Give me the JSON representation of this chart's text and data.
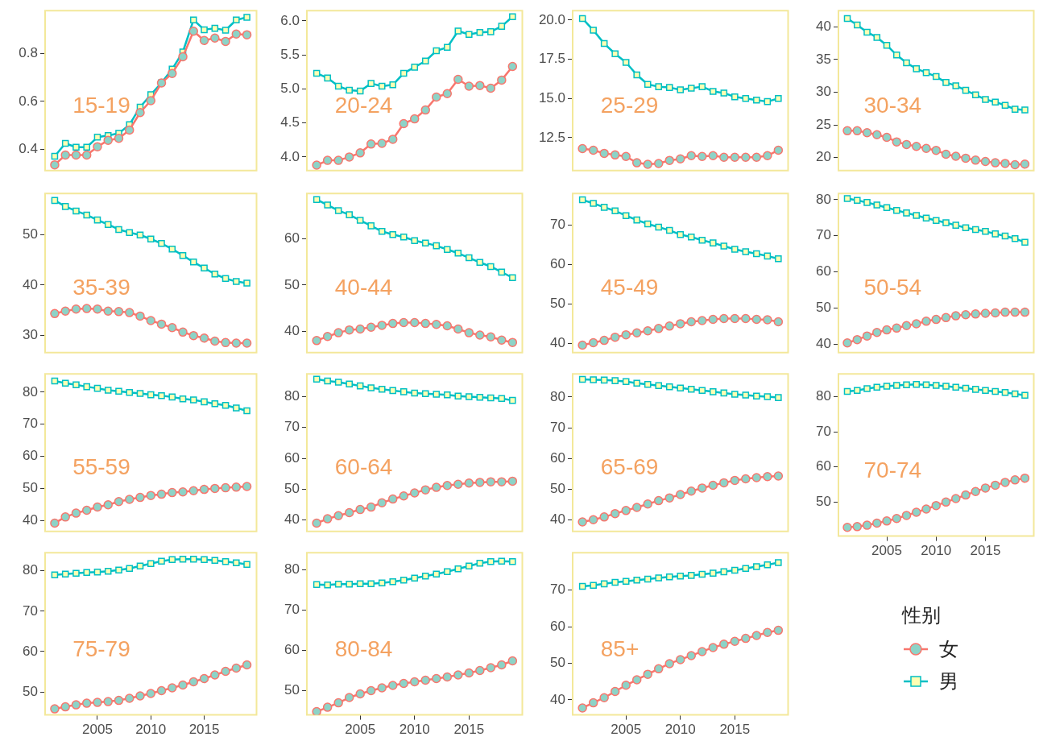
{
  "chart_data": [
    {
      "type": "line",
      "title": "15-19",
      "x": [
        2001,
        2002,
        2003,
        2004,
        2005,
        2006,
        2007,
        2008,
        2009,
        2010,
        2011,
        2012,
        2013,
        2014,
        2015,
        2016,
        2017,
        2018,
        2019
      ],
      "xlim": [
        2000.1,
        2019.9
      ],
      "xticks": [
        2005,
        2010,
        2015
      ],
      "ylim": [
        0.31,
        0.98
      ],
      "yticks": [
        {
          "value": 0.4,
          "label": "0.4"
        },
        {
          "value": 0.6,
          "label": "0.6"
        },
        {
          "value": 0.8,
          "label": "0.8"
        }
      ],
      "tick_labels": "y",
      "series": [
        {
          "color": "#f8766d",
          "marker": "circle",
          "values": [
            0.334,
            0.375,
            0.375,
            0.375,
            0.41,
            0.437,
            0.445,
            0.48,
            0.553,
            0.603,
            0.677,
            0.717,
            0.787,
            0.894,
            0.855,
            0.865,
            0.851,
            0.882,
            0.879
          ]
        },
        {
          "color": "#00bfc4",
          "marker": "square",
          "values": [
            0.37,
            0.424,
            0.408,
            0.408,
            0.45,
            0.457,
            0.466,
            0.502,
            0.576,
            0.628,
            0.678,
            0.735,
            0.807,
            0.941,
            0.9,
            0.906,
            0.898,
            0.941,
            0.952
          ]
        }
      ]
    },
    {
      "type": "line",
      "title": "20-24",
      "x": [
        2001,
        2002,
        2003,
        2004,
        2005,
        2006,
        2007,
        2008,
        2009,
        2010,
        2011,
        2012,
        2013,
        2014,
        2015,
        2016,
        2017,
        2018,
        2019
      ],
      "xlim": [
        2000.1,
        2019.9
      ],
      "xticks": [
        2005,
        2010,
        2015
      ],
      "ylim": [
        3.8,
        6.15
      ],
      "yticks": [
        {
          "value": 4,
          "label": "4.0"
        },
        {
          "value": 4.5,
          "label": "4.5"
        },
        {
          "value": 5,
          "label": "5.0"
        },
        {
          "value": 5.5,
          "label": "5.5"
        },
        {
          "value": 6,
          "label": "6.0"
        }
      ],
      "tick_labels": "y",
      "series": [
        {
          "color": "#f8766d",
          "marker": "circle",
          "values": [
            3.88,
            3.95,
            3.95,
            4.0,
            4.06,
            4.19,
            4.2,
            4.26,
            4.49,
            4.56,
            4.69,
            4.88,
            4.93,
            5.14,
            5.04,
            5.05,
            5.01,
            5.13,
            5.33
          ]
        },
        {
          "color": "#00bfc4",
          "marker": "square",
          "values": [
            5.23,
            5.16,
            5.04,
            4.98,
            4.97,
            5.08,
            5.04,
            5.06,
            5.23,
            5.32,
            5.41,
            5.56,
            5.61,
            5.85,
            5.8,
            5.83,
            5.84,
            5.92,
            6.06
          ]
        }
      ]
    },
    {
      "type": "line",
      "title": "25-29",
      "x": [
        2001,
        2002,
        2003,
        2004,
        2005,
        2006,
        2007,
        2008,
        2009,
        2010,
        2011,
        2012,
        2013,
        2014,
        2015,
        2016,
        2017,
        2018,
        2019
      ],
      "xlim": [
        2000.1,
        2019.9
      ],
      "xticks": [
        2005,
        2010,
        2015
      ],
      "ylim": [
        10.4,
        20.6
      ],
      "yticks": [
        {
          "value": 12.5,
          "label": "12.5"
        },
        {
          "value": 15,
          "label": "15.0"
        },
        {
          "value": 17.5,
          "label": "17.5"
        },
        {
          "value": 20,
          "label": "20.0"
        }
      ],
      "tick_labels": "y",
      "series": [
        {
          "color": "#f8766d",
          "marker": "circle",
          "values": [
            11.8,
            11.7,
            11.5,
            11.4,
            11.3,
            10.9,
            10.8,
            10.85,
            11.05,
            11.15,
            11.35,
            11.3,
            11.35,
            11.25,
            11.25,
            11.25,
            11.25,
            11.35,
            11.7
          ]
        },
        {
          "color": "#00bfc4",
          "marker": "square",
          "values": [
            20.1,
            19.35,
            18.5,
            17.85,
            17.3,
            16.5,
            15.9,
            15.75,
            15.7,
            15.55,
            15.65,
            15.75,
            15.45,
            15.35,
            15.1,
            15.0,
            14.9,
            14.8,
            15.0
          ]
        }
      ]
    },
    {
      "type": "line",
      "title": "30-34",
      "x": [
        2001,
        2002,
        2003,
        2004,
        2005,
        2006,
        2007,
        2008,
        2009,
        2010,
        2011,
        2012,
        2013,
        2014,
        2015,
        2016,
        2017,
        2018,
        2019
      ],
      "xlim": [
        2000.1,
        2019.9
      ],
      "xticks": [
        2005,
        2010,
        2015
      ],
      "ylim": [
        18,
        42.5
      ],
      "yticks": [
        20,
        25,
        30,
        35,
        40
      ],
      "tick_labels": "y",
      "series": [
        {
          "color": "#f8766d",
          "marker": "circle",
          "values": [
            24.1,
            24.1,
            23.8,
            23.5,
            23.1,
            22.4,
            22.0,
            21.7,
            21.4,
            21.1,
            20.5,
            20.2,
            19.9,
            19.6,
            19.4,
            19.2,
            19.1,
            18.9,
            19.0
          ]
        },
        {
          "color": "#00bfc4",
          "marker": "square",
          "values": [
            41.3,
            40.3,
            39.2,
            38.4,
            37.2,
            35.7,
            34.5,
            33.6,
            33.0,
            32.4,
            31.5,
            31.0,
            30.3,
            29.6,
            28.9,
            28.5,
            28.0,
            27.4,
            27.3
          ]
        }
      ]
    },
    {
      "type": "line",
      "title": "35-39",
      "x": [
        2001,
        2002,
        2003,
        2004,
        2005,
        2006,
        2007,
        2008,
        2009,
        2010,
        2011,
        2012,
        2013,
        2014,
        2015,
        2016,
        2017,
        2018,
        2019
      ],
      "xlim": [
        2000.1,
        2019.9
      ],
      "xticks": [
        2005,
        2010,
        2015
      ],
      "ylim": [
        26.5,
        58.3
      ],
      "yticks": [
        30,
        40,
        50
      ],
      "tick_labels": "y",
      "series": [
        {
          "color": "#f8766d",
          "marker": "circle",
          "values": [
            34.3,
            34.8,
            35.2,
            35.3,
            35.2,
            34.8,
            34.7,
            34.5,
            33.8,
            32.9,
            32.2,
            31.5,
            30.6,
            29.9,
            29.4,
            28.8,
            28.5,
            28.4,
            28.4
          ]
        },
        {
          "color": "#00bfc4",
          "marker": "square",
          "values": [
            56.9,
            55.7,
            54.8,
            54.0,
            53.0,
            52.1,
            51.1,
            50.5,
            50.0,
            49.2,
            48.3,
            47.2,
            45.9,
            44.6,
            43.4,
            42.2,
            41.3,
            40.7,
            40.4
          ]
        }
      ]
    },
    {
      "type": "line",
      "title": "40-44",
      "x": [
        2001,
        2002,
        2003,
        2004,
        2005,
        2006,
        2007,
        2008,
        2009,
        2010,
        2011,
        2012,
        2013,
        2014,
        2015,
        2016,
        2017,
        2018,
        2019
      ],
      "xlim": [
        2000.1,
        2019.9
      ],
      "xticks": [
        2005,
        2010,
        2015
      ],
      "ylim": [
        35.4,
        69.8
      ],
      "yticks": [
        40,
        50,
        60
      ],
      "tick_labels": "y",
      "series": [
        {
          "color": "#f8766d",
          "marker": "circle",
          "values": [
            38.0,
            38.9,
            39.7,
            40.3,
            40.5,
            40.9,
            41.3,
            41.7,
            41.9,
            41.9,
            41.7,
            41.5,
            41.2,
            40.5,
            39.7,
            39.2,
            38.8,
            38.1,
            37.6
          ]
        },
        {
          "color": "#00bfc4",
          "marker": "square",
          "values": [
            68.5,
            67.3,
            66.1,
            65.2,
            64.0,
            62.8,
            61.6,
            60.9,
            60.4,
            59.6,
            59.1,
            58.5,
            57.7,
            56.9,
            55.9,
            54.9,
            54.0,
            52.8,
            51.6
          ]
        }
      ]
    },
    {
      "type": "line",
      "title": "45-49",
      "x": [
        2001,
        2002,
        2003,
        2004,
        2005,
        2006,
        2007,
        2008,
        2009,
        2010,
        2011,
        2012,
        2013,
        2014,
        2015,
        2016,
        2017,
        2018,
        2019
      ],
      "xlim": [
        2000.1,
        2019.9
      ],
      "xticks": [
        2005,
        2010,
        2015
      ],
      "ylim": [
        37.7,
        77.9
      ],
      "yticks": [
        40,
        50,
        60,
        70
      ],
      "tick_labels": "y",
      "series": [
        {
          "color": "#f8766d",
          "marker": "circle",
          "values": [
            39.6,
            40.2,
            40.8,
            41.6,
            42.2,
            42.7,
            43.2,
            43.8,
            44.4,
            45.0,
            45.5,
            45.8,
            46.1,
            46.3,
            46.3,
            46.3,
            46.1,
            46.0,
            45.5
          ]
        },
        {
          "color": "#00bfc4",
          "marker": "square",
          "values": [
            76.3,
            75.4,
            74.4,
            73.5,
            72.3,
            71.2,
            70.2,
            69.4,
            68.6,
            67.5,
            66.9,
            66.1,
            65.4,
            64.6,
            63.8,
            63.2,
            62.7,
            62.1,
            61.4
          ]
        }
      ]
    },
    {
      "type": "line",
      "title": "50-54",
      "x": [
        2001,
        2002,
        2003,
        2004,
        2005,
        2006,
        2007,
        2008,
        2009,
        2010,
        2011,
        2012,
        2013,
        2014,
        2015,
        2016,
        2017,
        2018,
        2019
      ],
      "xlim": [
        2000.1,
        2019.9
      ],
      "xticks": [
        2005,
        2010,
        2015
      ],
      "ylim": [
        37.6,
        81.7
      ],
      "yticks": [
        40,
        50,
        60,
        70,
        80
      ],
      "tick_labels": "y",
      "series": [
        {
          "color": "#f8766d",
          "marker": "circle",
          "values": [
            40.3,
            41.2,
            42.2,
            43.2,
            43.9,
            44.4,
            45.1,
            45.6,
            46.3,
            46.8,
            47.3,
            47.8,
            48.1,
            48.3,
            48.5,
            48.6,
            48.8,
            48.8,
            48.8
          ]
        },
        {
          "color": "#00bfc4",
          "marker": "square",
          "values": [
            80.3,
            79.8,
            79.2,
            78.5,
            77.8,
            77.0,
            76.3,
            75.6,
            74.9,
            74.2,
            73.6,
            72.9,
            72.2,
            71.7,
            71.2,
            70.5,
            69.9,
            69.2,
            68.2
          ]
        }
      ]
    },
    {
      "type": "line",
      "title": "55-59",
      "x": [
        2001,
        2002,
        2003,
        2004,
        2005,
        2006,
        2007,
        2008,
        2009,
        2010,
        2011,
        2012,
        2013,
        2014,
        2015,
        2016,
        2017,
        2018,
        2019
      ],
      "xlim": [
        2000.1,
        2019.9
      ],
      "xticks": [
        2005,
        2010,
        2015
      ],
      "ylim": [
        36.6,
        85.7
      ],
      "yticks": [
        40,
        50,
        60,
        70,
        80
      ],
      "tick_labels": "y",
      "series": [
        {
          "color": "#f8766d",
          "marker": "circle",
          "values": [
            39.2,
            41.1,
            42.3,
            43.2,
            44.2,
            44.9,
            45.9,
            46.6,
            47.2,
            47.8,
            48.2,
            48.7,
            48.9,
            49.3,
            49.7,
            50.0,
            50.2,
            50.4,
            50.6
          ]
        },
        {
          "color": "#00bfc4",
          "marker": "square",
          "values": [
            83.5,
            82.8,
            82.3,
            81.7,
            81.2,
            80.6,
            80.3,
            79.9,
            79.6,
            79.2,
            78.9,
            78.5,
            77.9,
            77.6,
            77.0,
            76.4,
            75.9,
            75.1,
            74.2
          ]
        }
      ]
    },
    {
      "type": "line",
      "title": "60-64",
      "x": [
        2001,
        2002,
        2003,
        2004,
        2005,
        2006,
        2007,
        2008,
        2009,
        2010,
        2011,
        2012,
        2013,
        2014,
        2015,
        2016,
        2017,
        2018,
        2019
      ],
      "xlim": [
        2000.1,
        2019.9
      ],
      "xticks": [
        2005,
        2010,
        2015
      ],
      "ylim": [
        36.3,
        87.4
      ],
      "yticks": [
        40,
        50,
        60,
        70,
        80
      ],
      "tick_labels": "y",
      "series": [
        {
          "color": "#f8766d",
          "marker": "circle",
          "values": [
            39.0,
            40.4,
            41.4,
            42.4,
            43.4,
            44.2,
            45.6,
            46.8,
            47.8,
            48.8,
            49.8,
            50.6,
            51.2,
            51.6,
            52.0,
            52.2,
            52.4,
            52.4,
            52.6
          ]
        },
        {
          "color": "#00bfc4",
          "marker": "square",
          "values": [
            85.7,
            85.1,
            84.7,
            84.1,
            83.5,
            82.9,
            82.4,
            82.0,
            81.6,
            81.2,
            81.0,
            80.8,
            80.6,
            80.2,
            80.0,
            79.8,
            79.6,
            79.4,
            78.8
          ]
        }
      ]
    },
    {
      "type": "line",
      "title": "65-69",
      "x": [
        2001,
        2002,
        2003,
        2004,
        2005,
        2006,
        2007,
        2008,
        2009,
        2010,
        2011,
        2012,
        2013,
        2014,
        2015,
        2016,
        2017,
        2018,
        2019
      ],
      "xlim": [
        2000.1,
        2019.9
      ],
      "xticks": [
        2005,
        2010,
        2015
      ],
      "ylim": [
        36.3,
        87.5
      ],
      "yticks": [
        40,
        50,
        60,
        70,
        80
      ],
      "tick_labels": "y",
      "series": [
        {
          "color": "#f8766d",
          "marker": "circle",
          "values": [
            39.4,
            40.1,
            41.0,
            42.1,
            43.1,
            44.1,
            45.2,
            46.3,
            47.2,
            48.3,
            49.4,
            50.4,
            51.3,
            52.1,
            52.9,
            53.4,
            53.8,
            54.1,
            54.3
          ]
        },
        {
          "color": "#00bfc4",
          "marker": "square",
          "values": [
            85.7,
            85.6,
            85.5,
            85.3,
            85.0,
            84.5,
            84.1,
            83.7,
            83.3,
            82.9,
            82.5,
            82.1,
            81.7,
            81.3,
            80.9,
            80.6,
            80.3,
            80.1,
            79.8
          ]
        }
      ]
    },
    {
      "type": "line",
      "title": "70-74",
      "x": [
        2001,
        2002,
        2003,
        2004,
        2005,
        2006,
        2007,
        2008,
        2009,
        2010,
        2011,
        2012,
        2013,
        2014,
        2015,
        2016,
        2017,
        2018,
        2019
      ],
      "xlim": [
        2000.1,
        2019.9
      ],
      "xticks": [
        2005,
        2010,
        2015
      ],
      "ylim": [
        40.3,
        86.5
      ],
      "yticks": [
        50,
        60,
        70,
        80
      ],
      "series": [
        {
          "color": "#f8766d",
          "marker": "circle",
          "values": [
            42.8,
            43.0,
            43.4,
            44.0,
            44.6,
            45.3,
            46.2,
            47.1,
            48.0,
            49.0,
            50.0,
            51.0,
            52.0,
            53.0,
            54.0,
            54.8,
            55.6,
            56.3,
            56.8
          ]
        },
        {
          "color": "#00bfc4",
          "marker": "square",
          "values": [
            81.5,
            81.8,
            82.3,
            82.7,
            83.0,
            83.2,
            83.4,
            83.5,
            83.4,
            83.2,
            83.0,
            82.7,
            82.4,
            82.1,
            81.8,
            81.5,
            81.2,
            80.8,
            80.4
          ]
        }
      ]
    },
    {
      "type": "line",
      "title": "75-79",
      "x": [
        2001,
        2002,
        2003,
        2004,
        2005,
        2006,
        2007,
        2008,
        2009,
        2010,
        2011,
        2012,
        2013,
        2014,
        2015,
        2016,
        2017,
        2018,
        2019
      ],
      "xlim": [
        2000.1,
        2019.9
      ],
      "xticks": [
        2005,
        2010,
        2015
      ],
      "ylim": [
        44.3,
        84.5
      ],
      "yticks": [
        50,
        60,
        70,
        80
      ],
      "series": [
        {
          "color": "#f8766d",
          "marker": "circle",
          "values": [
            45.8,
            46.3,
            46.8,
            47.2,
            47.4,
            47.6,
            47.9,
            48.4,
            49.0,
            49.6,
            50.3,
            51.0,
            51.7,
            52.5,
            53.3,
            54.2,
            55.1,
            55.9,
            56.7
          ]
        },
        {
          "color": "#00bfc4",
          "marker": "square",
          "values": [
            79.0,
            79.2,
            79.4,
            79.6,
            79.7,
            79.9,
            80.2,
            80.6,
            81.2,
            81.8,
            82.4,
            82.8,
            82.9,
            82.9,
            82.8,
            82.6,
            82.3,
            82.0,
            81.6
          ]
        }
      ]
    },
    {
      "type": "line",
      "title": "80-84",
      "x": [
        2001,
        2002,
        2003,
        2004,
        2005,
        2006,
        2007,
        2008,
        2009,
        2010,
        2011,
        2012,
        2013,
        2014,
        2015,
        2016,
        2017,
        2018,
        2019
      ],
      "xlim": [
        2000.1,
        2019.9
      ],
      "xticks": [
        2005,
        2010,
        2015
      ],
      "ylim": [
        44,
        84.2
      ],
      "yticks": [
        50,
        60,
        70,
        80
      ],
      "series": [
        {
          "color": "#f8766d",
          "marker": "circle",
          "values": [
            44.8,
            45.9,
            47.0,
            48.3,
            49.2,
            50.0,
            50.7,
            51.3,
            51.8,
            52.2,
            52.6,
            53.0,
            53.4,
            53.9,
            54.4,
            55.0,
            55.7,
            56.4,
            57.4
          ]
        },
        {
          "color": "#00bfc4",
          "marker": "square",
          "values": [
            76.3,
            76.2,
            76.4,
            76.4,
            76.5,
            76.5,
            76.7,
            77.0,
            77.4,
            77.9,
            78.4,
            78.9,
            79.5,
            80.2,
            80.9,
            81.6,
            82.0,
            82.1,
            82.0
          ]
        }
      ]
    },
    {
      "type": "line",
      "title": "85+",
      "x": [
        2001,
        2002,
        2003,
        2004,
        2005,
        2006,
        2007,
        2008,
        2009,
        2010,
        2011,
        2012,
        2013,
        2014,
        2015,
        2016,
        2017,
        2018,
        2019
      ],
      "xlim": [
        2000.1,
        2019.9
      ],
      "xticks": [
        2005,
        2010,
        2015
      ],
      "ylim": [
        35.9,
        80.2
      ],
      "yticks": [
        40,
        50,
        60,
        70
      ],
      "legend": "right",
      "legend_title": "性别",
      "series": [
        {
          "name": "女",
          "color": "#f8766d",
          "marker": "circle",
          "values": [
            37.8,
            39.2,
            40.6,
            42.3,
            44.0,
            45.5,
            47.0,
            48.5,
            49.9,
            51.0,
            52.1,
            53.2,
            54.3,
            55.2,
            56.0,
            56.8,
            57.6,
            58.4,
            59.0
          ]
        },
        {
          "name": "男",
          "color": "#00bfc4",
          "marker": "square",
          "values": [
            71.0,
            71.3,
            71.7,
            72.1,
            72.4,
            72.7,
            73.0,
            73.3,
            73.6,
            73.8,
            74.0,
            74.3,
            74.6,
            75.0,
            75.4,
            75.9,
            76.4,
            76.9,
            77.5
          ]
        }
      ]
    }
  ]
}
